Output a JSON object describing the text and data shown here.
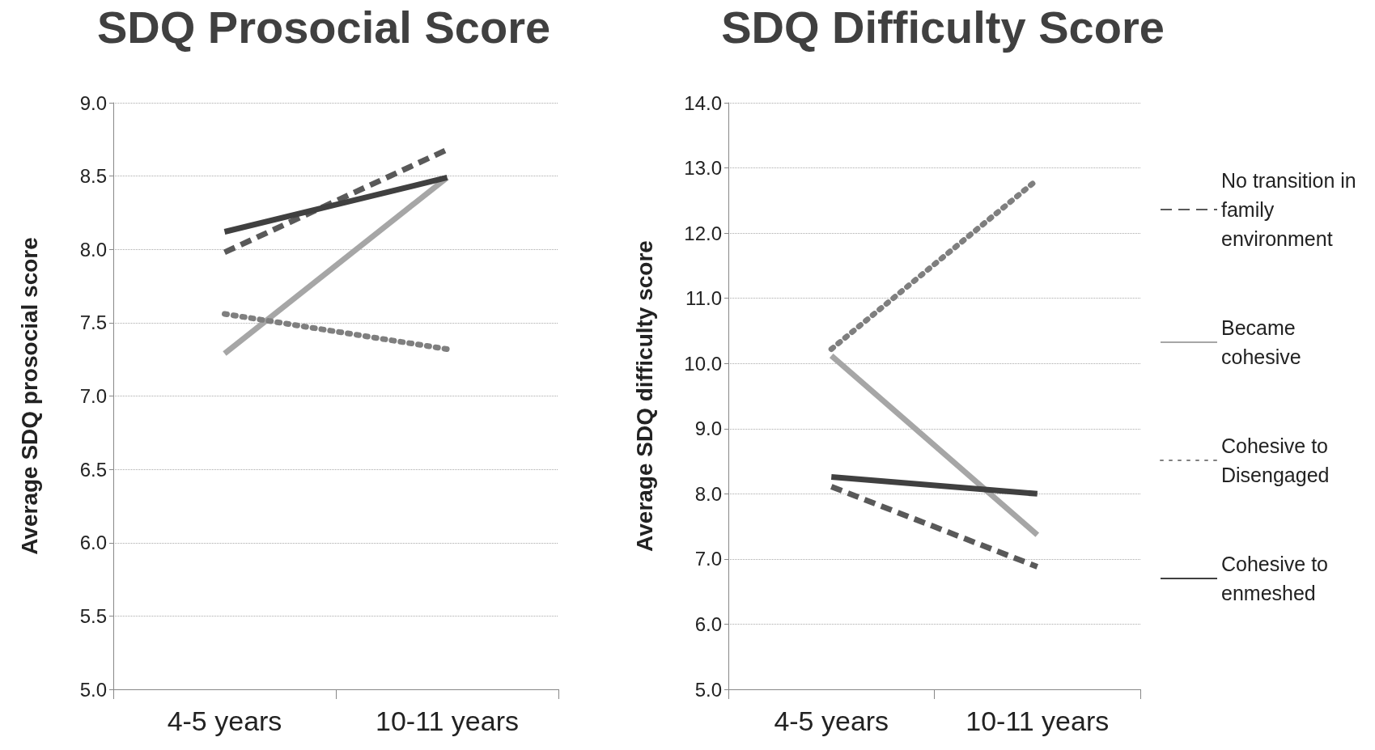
{
  "chart_data": [
    {
      "type": "line",
      "title": "SDQ Prosocial Score",
      "ylabel": "Average SDQ prosocial score",
      "categories": [
        "4-5 years",
        "10-11 years"
      ],
      "ylim": [
        5,
        9
      ],
      "yticks": [
        {
          "value": 5,
          "label": "5.0"
        },
        {
          "value": 5.5,
          "label": "5.5"
        },
        {
          "value": 6,
          "label": "6.0"
        },
        {
          "value": 6.5,
          "label": "6.5"
        },
        {
          "value": 7,
          "label": "7.0"
        },
        {
          "value": 7.5,
          "label": "7.5"
        },
        {
          "value": 8,
          "label": "8.0"
        },
        {
          "value": 8.5,
          "label": "8.5"
        },
        {
          "value": 9,
          "label": "9.0"
        }
      ],
      "grid": "y",
      "legend": false,
      "marker": "none",
      "series": [
        {
          "color": "#595959",
          "line_style": "dashed",
          "values": [
            7.98,
            8.68
          ]
        },
        {
          "color": "#a6a6a6",
          "line_style": "solid",
          "values": [
            7.29,
            8.49
          ]
        },
        {
          "color": "#7f7f7f",
          "line_style": "dotted",
          "values": [
            7.56,
            7.32
          ]
        },
        {
          "color": "#404040",
          "line_style": "solid",
          "values": [
            8.12,
            8.49
          ]
        }
      ]
    },
    {
      "type": "line",
      "title": "SDQ Difficulty Score",
      "ylabel": "Average SDQ difficulty score",
      "categories": [
        "4-5 years",
        "10-11 years"
      ],
      "ylim": [
        5,
        14
      ],
      "yticks": [
        {
          "value": 5,
          "label": "5.0"
        },
        {
          "value": 6,
          "label": "6.0"
        },
        {
          "value": 7,
          "label": "7.0"
        },
        {
          "value": 8,
          "label": "8.0"
        },
        {
          "value": 9,
          "label": "9.0"
        },
        {
          "value": 10,
          "label": "10.0"
        },
        {
          "value": 11,
          "label": "11.0"
        },
        {
          "value": 12,
          "label": "12.0"
        },
        {
          "value": 13,
          "label": "13.0"
        },
        {
          "value": 14,
          "label": "14.0"
        }
      ],
      "grid": "y",
      "legend": "right",
      "marker": "none",
      "series": [
        {
          "name": "No transition in family environment",
          "color": "#595959",
          "line_style": "dashed",
          "values": [
            8.11,
            6.88
          ]
        },
        {
          "name": "Became cohesive",
          "color": "#a6a6a6",
          "line_style": "solid",
          "values": [
            10.12,
            7.37
          ]
        },
        {
          "name": "Cohesive to Disengaged",
          "color": "#7f7f7f",
          "line_style": "dotted",
          "values": [
            10.22,
            12.82
          ]
        },
        {
          "name": "Cohesive to enmeshed",
          "color": "#404040",
          "line_style": "solid",
          "values": [
            8.26,
            8.0
          ]
        }
      ]
    }
  ]
}
